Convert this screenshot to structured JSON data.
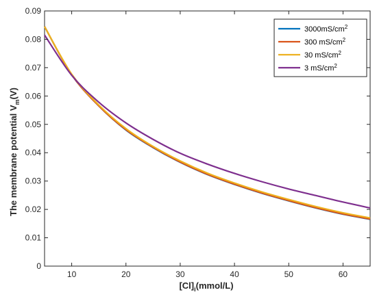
{
  "chart_data": {
    "type": "line",
    "title": "",
    "xlabel": {
      "main": "[Cl]",
      "sub": "i",
      "suffix": "(mmol/L)"
    },
    "ylabel": {
      "main": "The membrane potential V",
      "sub": "m",
      "suffix": "(V)"
    },
    "xlim": [
      5,
      65
    ],
    "ylim": [
      0,
      0.09
    ],
    "xticks": [
      10,
      20,
      30,
      40,
      50,
      60
    ],
    "yticks": [
      0,
      0.01,
      0.02,
      0.03,
      0.04,
      0.05,
      0.06,
      0.07,
      0.08,
      0.09
    ],
    "legend": "top-right",
    "grid": false,
    "series": [
      {
        "name": "3000mS/cm",
        "sup": "2",
        "color": "#0072BD",
        "x": [
          5,
          10,
          15,
          20,
          25,
          30,
          35,
          40,
          45,
          50,
          55,
          60,
          65
        ],
        "y": [
          0.0845,
          0.0675,
          0.0565,
          0.048,
          0.0418,
          0.0366,
          0.0323,
          0.0288,
          0.0257,
          0.023,
          0.0205,
          0.0183,
          0.0165
        ]
      },
      {
        "name": "300 mS/cm",
        "sup": "2",
        "color": "#D95319",
        "x": [
          5,
          10,
          15,
          20,
          25,
          30,
          35,
          40,
          45,
          50,
          55,
          60,
          65
        ],
        "y": [
          0.0845,
          0.0675,
          0.0565,
          0.0481,
          0.0419,
          0.0367,
          0.0324,
          0.0289,
          0.0258,
          0.0231,
          0.0206,
          0.0184,
          0.0166
        ]
      },
      {
        "name": "30 mS/cm",
        "sup": "2",
        "color": "#EDB120",
        "x": [
          5,
          10,
          15,
          20,
          25,
          30,
          35,
          40,
          45,
          50,
          55,
          60,
          65
        ],
        "y": [
          0.0845,
          0.0677,
          0.0568,
          0.0485,
          0.0422,
          0.0371,
          0.0328,
          0.0293,
          0.0262,
          0.0235,
          0.021,
          0.0188,
          0.017
        ]
      },
      {
        "name": "3 mS/cm",
        "sup": "2",
        "color": "#7E2F8E",
        "x": [
          5,
          10,
          15,
          20,
          25,
          30,
          35,
          40,
          45,
          50,
          55,
          60,
          65
        ],
        "y": [
          0.0815,
          0.0673,
          0.0578,
          0.0505,
          0.0447,
          0.0398,
          0.036,
          0.0327,
          0.0298,
          0.0272,
          0.0249,
          0.0226,
          0.0205
        ]
      }
    ]
  }
}
